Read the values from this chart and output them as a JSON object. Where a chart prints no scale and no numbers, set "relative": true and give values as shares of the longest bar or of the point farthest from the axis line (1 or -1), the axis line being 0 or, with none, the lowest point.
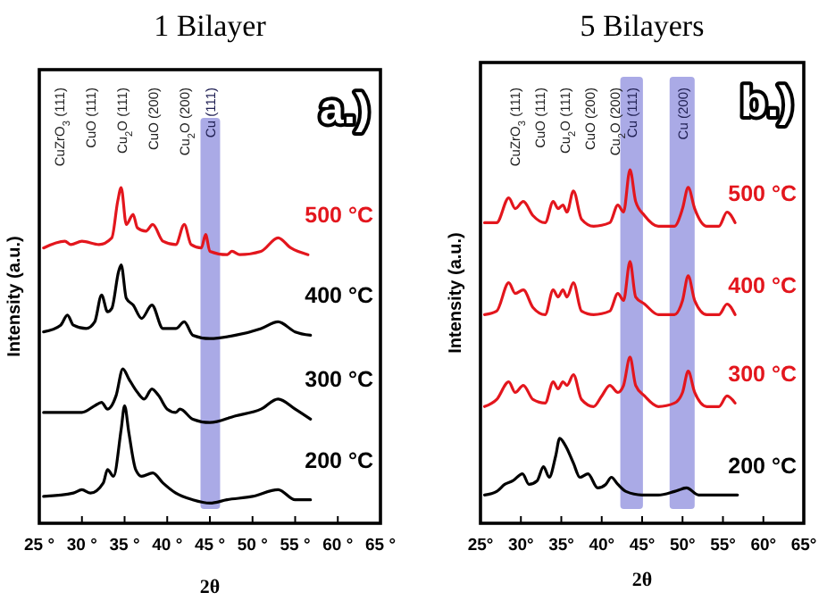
{
  "chart_data": [
    {
      "type": "line",
      "title": "1 Bilayer",
      "xlabel": "2θ",
      "ylabel": "Intensity (a.u.)",
      "relative": true,
      "xlim": [
        25,
        65
      ],
      "xticks": [
        {
          "value": 25,
          "label": "25 °"
        },
        {
          "value": 30,
          "label": "30 °"
        },
        {
          "value": 35,
          "label": "35 °"
        },
        {
          "value": 40,
          "label": "40 °"
        },
        {
          "value": 45,
          "label": "45 °"
        },
        {
          "value": 50,
          "label": "50 °"
        },
        {
          "value": 55,
          "label": "55 °"
        },
        {
          "value": 60,
          "label": "60 °"
        },
        {
          "value": 65,
          "label": "65 °"
        }
      ],
      "series": [
        {
          "name": "500 °C",
          "color": "#e3161d",
          "x": [
            25.5,
            28,
            28.7,
            30,
            32,
            33.5,
            34.2,
            34.6,
            35.2,
            36,
            36.5,
            37.5,
            38.3,
            39.5,
            41,
            42,
            42.8,
            44,
            44.5,
            45,
            47,
            47.6,
            48.5,
            51,
            53,
            54.5,
            56.5
          ],
          "values": [
            0.82,
            0.84,
            0.83,
            0.84,
            0.83,
            0.85,
            0.96,
            1,
            0.89,
            0.92,
            0.88,
            0.87,
            0.89,
            0.84,
            0.83,
            0.89,
            0.83,
            0.82,
            0.86,
            0.81,
            0.8,
            0.81,
            0.8,
            0.81,
            0.85,
            0.82,
            0.8
          ]
        },
        {
          "name": "400 °C",
          "color": "#000000",
          "x": [
            25.5,
            27.5,
            28.3,
            29,
            30.5,
            31.5,
            32.3,
            33,
            33.5,
            34.3,
            34.6,
            35.2,
            36,
            37,
            38.2,
            39.5,
            41,
            42,
            43,
            45,
            48,
            51,
            53,
            55,
            56.8
          ],
          "values": [
            0.57,
            0.59,
            0.62,
            0.59,
            0.58,
            0.6,
            0.68,
            0.63,
            0.64,
            0.75,
            0.77,
            0.67,
            0.65,
            0.61,
            0.65,
            0.58,
            0.58,
            0.6,
            0.56,
            0.55,
            0.56,
            0.58,
            0.6,
            0.57,
            0.56
          ]
        },
        {
          "name": "300 °C",
          "color": "#000000",
          "x": [
            25.5,
            30,
            31.5,
            32.3,
            33,
            34,
            34.8,
            35.5,
            36.5,
            37.3,
            38.2,
            39,
            40,
            41,
            41.5,
            43,
            45,
            48,
            51,
            53,
            55,
            56.8
          ],
          "values": [
            0.33,
            0.33,
            0.35,
            0.36,
            0.34,
            0.38,
            0.46,
            0.43,
            0.39,
            0.37,
            0.4,
            0.38,
            0.34,
            0.33,
            0.34,
            0.31,
            0.3,
            0.32,
            0.34,
            0.37,
            0.34,
            0.31
          ]
        },
        {
          "name": "200 °C",
          "color": "#000000",
          "x": [
            25.5,
            29,
            30,
            31,
            32.5,
            33,
            33.7,
            34.6,
            35,
            35.5,
            36.3,
            37,
            38.3,
            39.5,
            41,
            43,
            45,
            47,
            50,
            53,
            55,
            56.8
          ],
          "values": [
            0.08,
            0.09,
            0.1,
            0.09,
            0.12,
            0.16,
            0.14,
            0.28,
            0.35,
            0.27,
            0.16,
            0.14,
            0.15,
            0.12,
            0.09,
            0.07,
            0.06,
            0.07,
            0.08,
            0.1,
            0.07,
            0.07
          ]
        }
      ],
      "bands": [
        {
          "axis": "x",
          "from": 43.9,
          "to": 46.2,
          "label": "Cu (111)",
          "color": "#aaaae6"
        }
      ],
      "annotations": [
        "a.)",
        "CuZrO$_{3}$ (111)",
        "CuO (111)",
        "Cu$_{2}$O (111)",
        "CuO (200)",
        "Cu$_{2}$O (200)"
      ]
    },
    {
      "type": "line",
      "title": "5 Bilayers",
      "xlabel": "2θ",
      "ylabel": "Intensity (a.u.)",
      "relative": true,
      "xlim": [
        25,
        65
      ],
      "xticks": [
        {
          "value": 25,
          "label": "25°"
        },
        {
          "value": 30,
          "label": "30°"
        },
        {
          "value": 35,
          "label": "35°"
        },
        {
          "value": 40,
          "label": "40°"
        },
        {
          "value": 45,
          "label": "45°"
        },
        {
          "value": 50,
          "label": "50°"
        },
        {
          "value": 55,
          "label": "55°"
        },
        {
          "value": 60,
          "label": "60°"
        },
        {
          "value": 65,
          "label": "65°"
        }
      ],
      "series": [
        {
          "name": "500 °C",
          "color": "#e3161d",
          "x": [
            25.5,
            27,
            28.5,
            29.3,
            30.3,
            31.5,
            33,
            34,
            34.6,
            35.2,
            35.7,
            36.5,
            37.5,
            39,
            41,
            42,
            42.7,
            43.5,
            44.2,
            45.3,
            47,
            49,
            50,
            50.7,
            51.5,
            53,
            54.5,
            55.5,
            56.5
          ],
          "values": [
            0.85,
            0.85,
            0.92,
            0.89,
            0.91,
            0.87,
            0.85,
            0.91,
            0.89,
            0.9,
            0.88,
            0.94,
            0.86,
            0.84,
            0.85,
            0.9,
            0.88,
            1,
            0.91,
            0.87,
            0.84,
            0.84,
            0.89,
            0.95,
            0.89,
            0.84,
            0.84,
            0.88,
            0.85
          ]
        },
        {
          "name": "400 °C",
          "color": "#e3161d",
          "x": [
            25.5,
            27,
            28.5,
            29.3,
            30.3,
            31.5,
            33,
            34,
            34.6,
            35.2,
            35.7,
            36.5,
            37.5,
            39,
            41,
            42,
            42.7,
            43.5,
            44.2,
            45.3,
            47,
            49,
            50,
            50.7,
            51.5,
            53,
            54.5,
            55.5,
            56.5
          ],
          "values": [
            0.59,
            0.6,
            0.68,
            0.65,
            0.66,
            0.61,
            0.59,
            0.66,
            0.64,
            0.66,
            0.64,
            0.68,
            0.6,
            0.59,
            0.6,
            0.65,
            0.63,
            0.74,
            0.64,
            0.62,
            0.59,
            0.59,
            0.63,
            0.7,
            0.63,
            0.59,
            0.59,
            0.62,
            0.59
          ]
        },
        {
          "name": "300 °C",
          "color": "#e3161d",
          "x": [
            25.5,
            27,
            28.5,
            29.3,
            30.3,
            31.5,
            33,
            34,
            34.6,
            35.2,
            35.7,
            36.5,
            37.5,
            39,
            40,
            41,
            42,
            42.7,
            43.5,
            44.2,
            45.3,
            47,
            49,
            50,
            50.7,
            51.5,
            53,
            54.5,
            55.5,
            56.5
          ],
          "values": [
            0.33,
            0.35,
            0.4,
            0.37,
            0.39,
            0.35,
            0.34,
            0.4,
            0.38,
            0.4,
            0.39,
            0.42,
            0.35,
            0.33,
            0.36,
            0.39,
            0.37,
            0.39,
            0.47,
            0.39,
            0.36,
            0.33,
            0.34,
            0.37,
            0.43,
            0.37,
            0.33,
            0.33,
            0.36,
            0.34
          ]
        },
        {
          "name": "200 °C",
          "color": "#000000",
          "x": [
            25.5,
            27,
            28,
            29,
            30.2,
            31,
            32,
            32.8,
            33.5,
            34.3,
            34.8,
            35.5,
            36.5,
            37.3,
            38.3,
            39.5,
            40.5,
            41.2,
            42,
            43,
            45,
            47,
            49,
            50.5,
            52,
            54,
            56.8
          ],
          "values": [
            0.08,
            0.09,
            0.11,
            0.12,
            0.14,
            0.11,
            0.12,
            0.16,
            0.13,
            0.19,
            0.24,
            0.22,
            0.17,
            0.13,
            0.14,
            0.1,
            0.11,
            0.13,
            0.11,
            0.09,
            0.08,
            0.08,
            0.09,
            0.1,
            0.08,
            0.08,
            0.08
          ]
        }
      ],
      "bands": [
        {
          "axis": "x",
          "from": 42.3,
          "to": 45.1,
          "label": "Cu (111)",
          "color": "#aaaae6"
        },
        {
          "axis": "x",
          "from": 48.4,
          "to": 51.5,
          "label": "Cu (200)",
          "color": "#aaaae6"
        }
      ],
      "annotations": [
        "b.)",
        "CuZrO$_{3}$ (111)",
        "CuO (111)",
        "Cu$_{2}$O (111)",
        "CuO (200)",
        "Cu$_{2}$O (200)"
      ]
    }
  ]
}
